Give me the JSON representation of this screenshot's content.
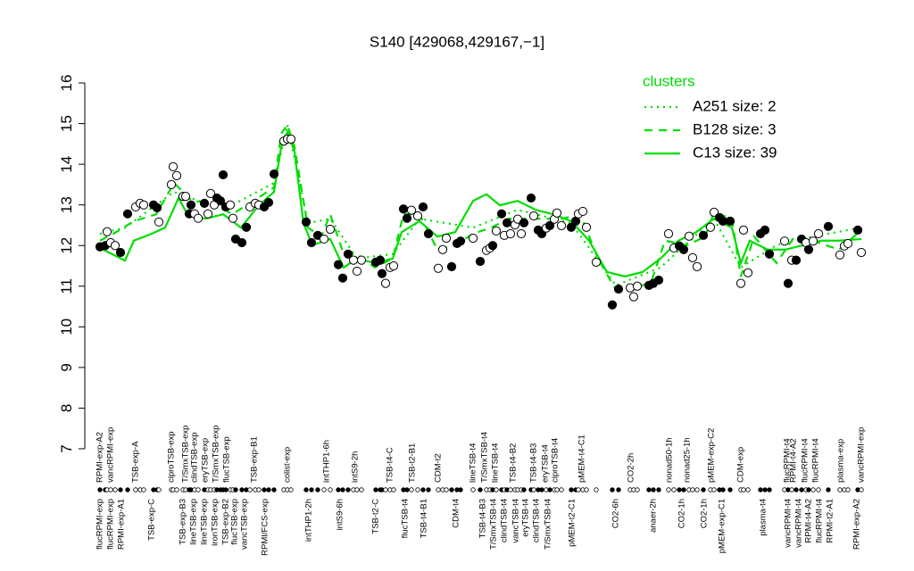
{
  "chart_data": {
    "type": "scatter",
    "title": "S140 [429068,429167,−1]",
    "ylim": [
      7,
      16
    ],
    "yticks": [
      7,
      8,
      9,
      10,
      11,
      12,
      13,
      14,
      15,
      16
    ],
    "legend_title": "clusters",
    "series": [
      {
        "name": "A251 size: 2",
        "color": "#00dd00",
        "style": "dotted",
        "x": [
          4,
          32,
          87,
          142,
          199,
          214,
          237,
          262,
          292,
          332,
          362,
          422,
          472,
          532,
          582,
          632,
          692,
          722,
          762,
          802,
          857
        ],
        "values": [
          12.29,
          12.44,
          13.32,
          12.88,
          13.54,
          14.97,
          12.55,
          12.66,
          11.68,
          11.79,
          12.66,
          12.44,
          12.88,
          12.55,
          11.02,
          11.46,
          12.66,
          11.46,
          12.01,
          12.22,
          12.44
        ]
      },
      {
        "name": "B128 size: 3",
        "color": "#00dd00",
        "style": "dashed",
        "x": [
          4,
          22,
          42,
          67,
          87,
          107,
          132,
          152,
          172,
          199,
          207,
          214,
          222,
          237,
          252,
          262,
          277,
          292,
          312,
          332,
          344,
          362,
          382,
          402,
          422,
          442,
          462,
          482,
          502,
          522,
          542,
          562,
          582,
          602,
          622,
          637,
          662,
          682,
          692,
          712,
          722,
          737,
          762,
          782,
          802,
          832,
          857
        ],
        "values": [
          12.12,
          12.33,
          12.6,
          12.77,
          13.54,
          13.1,
          13.04,
          12.77,
          13.04,
          13.43,
          14.75,
          14.97,
          14.42,
          12.44,
          12.22,
          12.77,
          11.79,
          11.79,
          11.46,
          11.68,
          12.77,
          12.77,
          11.9,
          12.01,
          12.29,
          12.44,
          12.66,
          12.66,
          12.66,
          12.66,
          12.77,
          11.68,
          10.91,
          10.91,
          11.13,
          12.12,
          12.01,
          12.22,
          12.82,
          12.66,
          11.24,
          12.22,
          11.57,
          12.22,
          12.12,
          11.9,
          12.38
        ]
      },
      {
        "name": "C13 size: 39",
        "color": "#00dd00",
        "style": "solid",
        "x": [
          4,
          32,
          42,
          62,
          77,
          92,
          102,
          122,
          142,
          162,
          182,
          199,
          207,
          214,
          222,
          232,
          242,
          262,
          277,
          292,
          312,
          332,
          342,
          362,
          382,
          402,
          422,
          437,
          452,
          472,
          492,
          512,
          532,
          552,
          572,
          592,
          612,
          632,
          652,
          672,
          692,
          712,
          722,
          732,
          752,
          772,
          792,
          812,
          832,
          857
        ],
        "values": [
          11.94,
          11.63,
          12.12,
          12.29,
          12.44,
          13.17,
          12.77,
          12.66,
          12.77,
          12.44,
          12.99,
          13.32,
          14.42,
          14.79,
          14.31,
          12.55,
          12.01,
          12.16,
          11.46,
          11.68,
          11.57,
          11.68,
          12.33,
          12.6,
          12.22,
          12.33,
          13.1,
          13.26,
          12.99,
          13.1,
          12.88,
          12.77,
          12.6,
          12.12,
          11.35,
          11.24,
          11.35,
          11.68,
          12.12,
          12.33,
          12.66,
          12.44,
          11.57,
          12.12,
          11.9,
          11.9,
          12.01,
          12.12,
          12.12,
          12.16
        ]
      }
    ],
    "points": {
      "x": [
        4,
        10,
        12,
        16,
        21,
        27,
        35,
        44,
        49,
        53,
        64,
        68,
        70,
        84,
        86,
        90,
        97,
        100,
        104,
        106,
        110,
        114,
        121,
        125,
        128,
        132,
        135,
        139,
        142,
        145,
        150,
        153,
        156,
        163,
        168,
        172,
        178,
        182,
        188,
        193,
        199,
        210,
        214,
        218,
        235,
        241,
        248,
        255,
        262,
        271,
        276,
        282,
        288,
        292,
        297,
        313,
        318,
        320,
        324,
        329,
        333,
        344,
        348,
        353,
        360,
        366,
        372,
        383,
        388,
        392,
        398,
        404,
        408,
        422,
        430,
        437,
        441,
        444,
        448,
        454,
        457,
        460,
        464,
        469,
        472,
        476,
        479,
        487,
        490,
        495,
        499,
        504,
        508,
        513,
        516,
        521,
        532,
        537,
        540,
        545,
        549,
        560,
        578,
        585,
        598,
        602,
        606,
        619,
        624,
        630,
        641,
        647,
        653,
        658,
        664,
        668,
        673,
        680,
        688,
        692,
        698,
        702,
        710,
        722,
        725,
        730,
        744,
        749,
        754,
        771,
        775,
        779,
        784,
        790,
        795,
        798,
        803,
        809,
        820,
        833,
        838,
        842,
        853,
        857
      ],
      "values": [
        11.97,
        12.0,
        12.34,
        12.07,
        12.0,
        11.83,
        12.78,
        12.95,
        13.04,
        13.0,
        13.0,
        12.93,
        12.58,
        13.5,
        13.94,
        13.72,
        13.21,
        13.21,
        12.78,
        13.0,
        12.78,
        12.67,
        13.04,
        12.78,
        13.28,
        13.0,
        13.17,
        13.1,
        13.74,
        12.95,
        13.0,
        12.67,
        12.16,
        12.07,
        12.45,
        12.95,
        13.04,
        13.0,
        12.95,
        13.06,
        13.76,
        14.57,
        14.62,
        14.62,
        12.58,
        12.07,
        12.25,
        12.16,
        12.4,
        11.53,
        11.2,
        11.79,
        11.64,
        11.37,
        11.64,
        11.59,
        11.64,
        11.31,
        11.07,
        11.46,
        11.5,
        12.9,
        12.67,
        12.87,
        12.73,
        12.95,
        12.29,
        11.44,
        11.9,
        12.18,
        11.48,
        12.05,
        12.11,
        12.18,
        11.61,
        11.88,
        11.94,
        12.0,
        12.36,
        12.78,
        12.25,
        12.56,
        12.29,
        12.51,
        12.65,
        12.29,
        12.56,
        13.17,
        12.73,
        12.38,
        12.29,
        12.43,
        12.49,
        12.65,
        12.8,
        12.49,
        12.45,
        12.6,
        12.78,
        12.84,
        12.45,
        11.59,
        10.54,
        10.93,
        10.96,
        10.74,
        11.0,
        11.02,
        11.07,
        11.15,
        12.29,
        11.94,
        11.99,
        11.9,
        12.23,
        11.7,
        11.48,
        12.25,
        12.45,
        12.82,
        12.69,
        12.6,
        12.6,
        11.07,
        12.38,
        11.33,
        12.29,
        12.38,
        11.79,
        12.11,
        11.07,
        11.64,
        11.64,
        12.16,
        12.07,
        11.9,
        12.11,
        12.29,
        12.47,
        11.77,
        11.99,
        12.05,
        12.38,
        11.83
      ],
      "filled": [
        true,
        true,
        false,
        false,
        false,
        true,
        true,
        false,
        false,
        false,
        true,
        true,
        false,
        false,
        false,
        false,
        false,
        false,
        true,
        true,
        false,
        false,
        true,
        false,
        false,
        false,
        true,
        true,
        true,
        true,
        false,
        false,
        true,
        true,
        true,
        false,
        false,
        false,
        true,
        true,
        true,
        false,
        false,
        false,
        true,
        true,
        true,
        false,
        false,
        true,
        true,
        true,
        false,
        false,
        false,
        true,
        true,
        true,
        false,
        false,
        false,
        true,
        true,
        false,
        false,
        true,
        true,
        false,
        false,
        false,
        true,
        true,
        true,
        false,
        true,
        false,
        false,
        true,
        false,
        true,
        false,
        true,
        false,
        false,
        false,
        false,
        true,
        true,
        false,
        true,
        true,
        false,
        true,
        false,
        false,
        false,
        true,
        true,
        false,
        false,
        false,
        false,
        true,
        true,
        false,
        false,
        false,
        true,
        true,
        true,
        false,
        false,
        true,
        true,
        false,
        false,
        false,
        true,
        false,
        false,
        true,
        true,
        true,
        false,
        false,
        false,
        true,
        true,
        true,
        false,
        true,
        false,
        true,
        true,
        false,
        true,
        false,
        false,
        true,
        false,
        false,
        false,
        true,
        false
      ]
    },
    "top_labels": {
      "x": [
        4,
        16,
        44,
        84,
        100,
        110,
        122,
        134,
        146,
        177,
        214,
        258,
        290,
        329,
        354,
        383,
        422,
        435,
        447,
        467,
        490,
        503,
        514,
        544,
        599,
        642,
        662,
        689,
        722,
        774,
        781,
        794,
        806,
        834,
        857
      ],
      "labels": [
        "RPMI-exp-A2",
        "vancRPMI-exp",
        "TSB-exp-A",
        "ciproTSB-exp",
        "T/SmxTSB-exp",
        "clindTSB-exp",
        "eryTSB-exp",
        "T/SmxTSB-exp",
        "flucTSB-exp",
        "TSB-exp-B1",
        "colist-exp",
        "intTHP1-6h",
        "intS9-2h",
        "TSB-t4-C",
        "TSB-t2-B1",
        "CDM-t2",
        "lineTSB-t4",
        "T/SmxTSB-t4",
        "lineTSB-t4",
        "TSB-t4-B2",
        "TSB-t4-B3",
        "eryTSB-t4",
        "ciproTSB-t4",
        "pMEM-t4-C1",
        "CO2-2h",
        "nonad50-1h",
        "nonad25-1h",
        "pMEM-exp-C2",
        "CDM-exp",
        "flucRPMI-t4",
        "RPMI-t4-A2",
        "flucRPMI-t4",
        "flucRPMI-t4",
        "plasma-exp",
        "vancRPMI-exp"
      ]
    },
    "bottom_labels": {
      "x": [
        4,
        16,
        28,
        62,
        97,
        109,
        121,
        133,
        145,
        155,
        166,
        189,
        238,
        273,
        313,
        346,
        367,
        403,
        433,
        445,
        457,
        470,
        481,
        493,
        506,
        533,
        582,
        624,
        656,
        681,
        701,
        747,
        775,
        787,
        798,
        810,
        822,
        852
      ],
      "labels": [
        "flucRPMI-exp",
        "flucRPMI-exp",
        "RPMI-exp-A1",
        "TSB-exp-C",
        "TSB-exp-B3",
        "lineTSB-exp",
        "lineTSB-exp",
        "ironTSB-exp",
        "TSB-exp-B2",
        "flucTSB-exp",
        "vancTSB-exp",
        "RPMI/FCS-exp",
        "intTHP1-2h",
        "intS9-6h",
        "TSB-t2-C",
        "flucTSB-t4",
        "TSB-t4-B1",
        "CDM-t4",
        "TSB-t4-B3",
        "T/SmxTSB-t4",
        "clindTSB-t4",
        "vancTSB-t4",
        "eryTSB-t4",
        "clindTSB-t4",
        "T/SmxTSB-t4",
        "pMEM-t2-C1",
        "CO2-6h",
        "anaer-2h",
        "CO2-1h",
        "CO2-1h",
        "pMEM-exp-C1",
        "plasma-t4",
        "vancRPMI-t4",
        "vancRPMI-t4",
        "RPMI-t4-A2",
        "flucRPMI-t4",
        "RPMI-t2-A1",
        "RPMI-exp-A2"
      ]
    }
  }
}
